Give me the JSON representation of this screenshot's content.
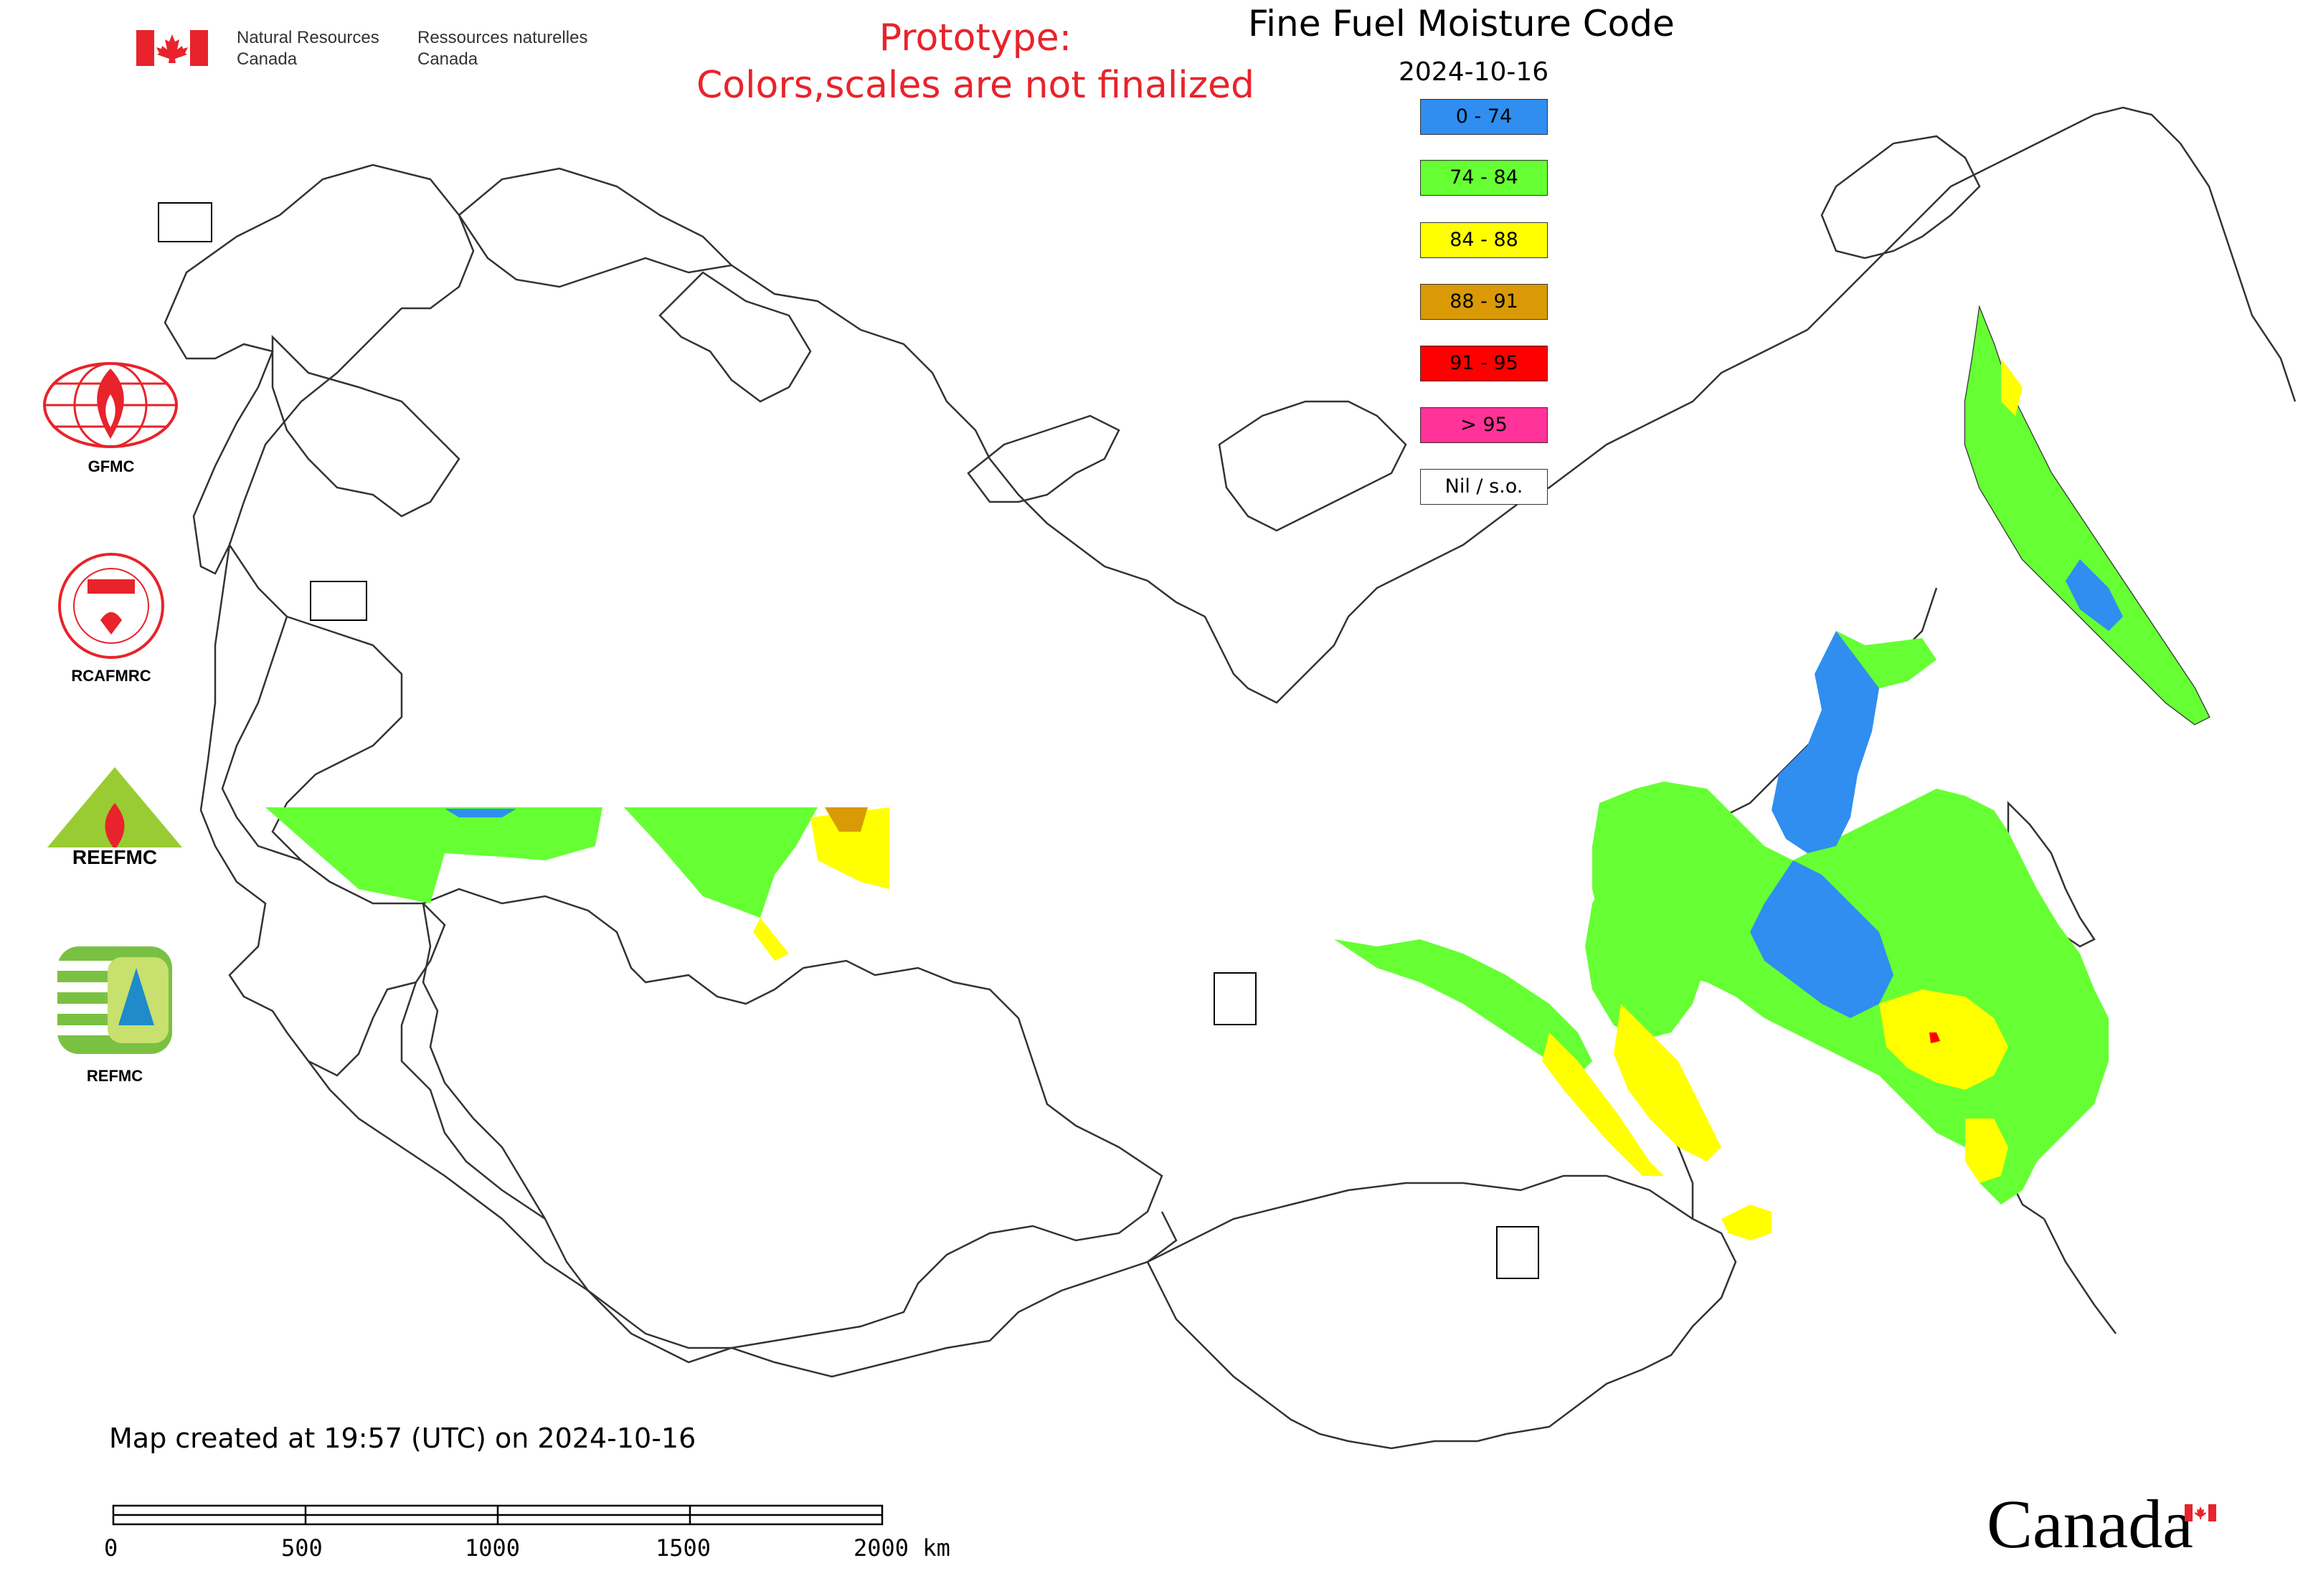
{
  "header": {
    "org_en_line1": "Natural Resources",
    "org_en_line2": "Canada",
    "org_fr_line1": "Ressources naturelles",
    "org_fr_line2": "Canada",
    "prototype_line1": "Prototype:",
    "prototype_line2": "Colors,scales are not finalized"
  },
  "title": "Fine Fuel Moisture Code",
  "date": "2024-10-16",
  "legend": [
    {
      "label": "0 - 74",
      "color": "#2f8ef0"
    },
    {
      "label": "74 - 84",
      "color": "#66ff33"
    },
    {
      "label": "84 - 88",
      "color": "#ffff00"
    },
    {
      "label": "88 - 91",
      "color": "#d99a06"
    },
    {
      "label": "91 - 95",
      "color": "#ff0000"
    },
    {
      "label": "> 95",
      "color": "#ff3399"
    },
    {
      "label": "Nil / s.o.",
      "color": "#ffffff"
    }
  ],
  "logos": [
    {
      "label": "GFMC",
      "icon": "gfmc-logo-icon"
    },
    {
      "label": "RCAFMRC",
      "icon": "rcafmrc-logo-icon"
    },
    {
      "label": "",
      "icon": "reefmc-logo-icon"
    },
    {
      "label": "REFMC",
      "icon": "refmc-logo-icon"
    }
  ],
  "created_text": "Map created at 19:57 (UTC) on 2024-10-16",
  "scale_bar": {
    "labels": [
      "0",
      "500",
      "1000",
      "1500",
      "2000 km"
    ]
  },
  "wordmark": "Canada"
}
